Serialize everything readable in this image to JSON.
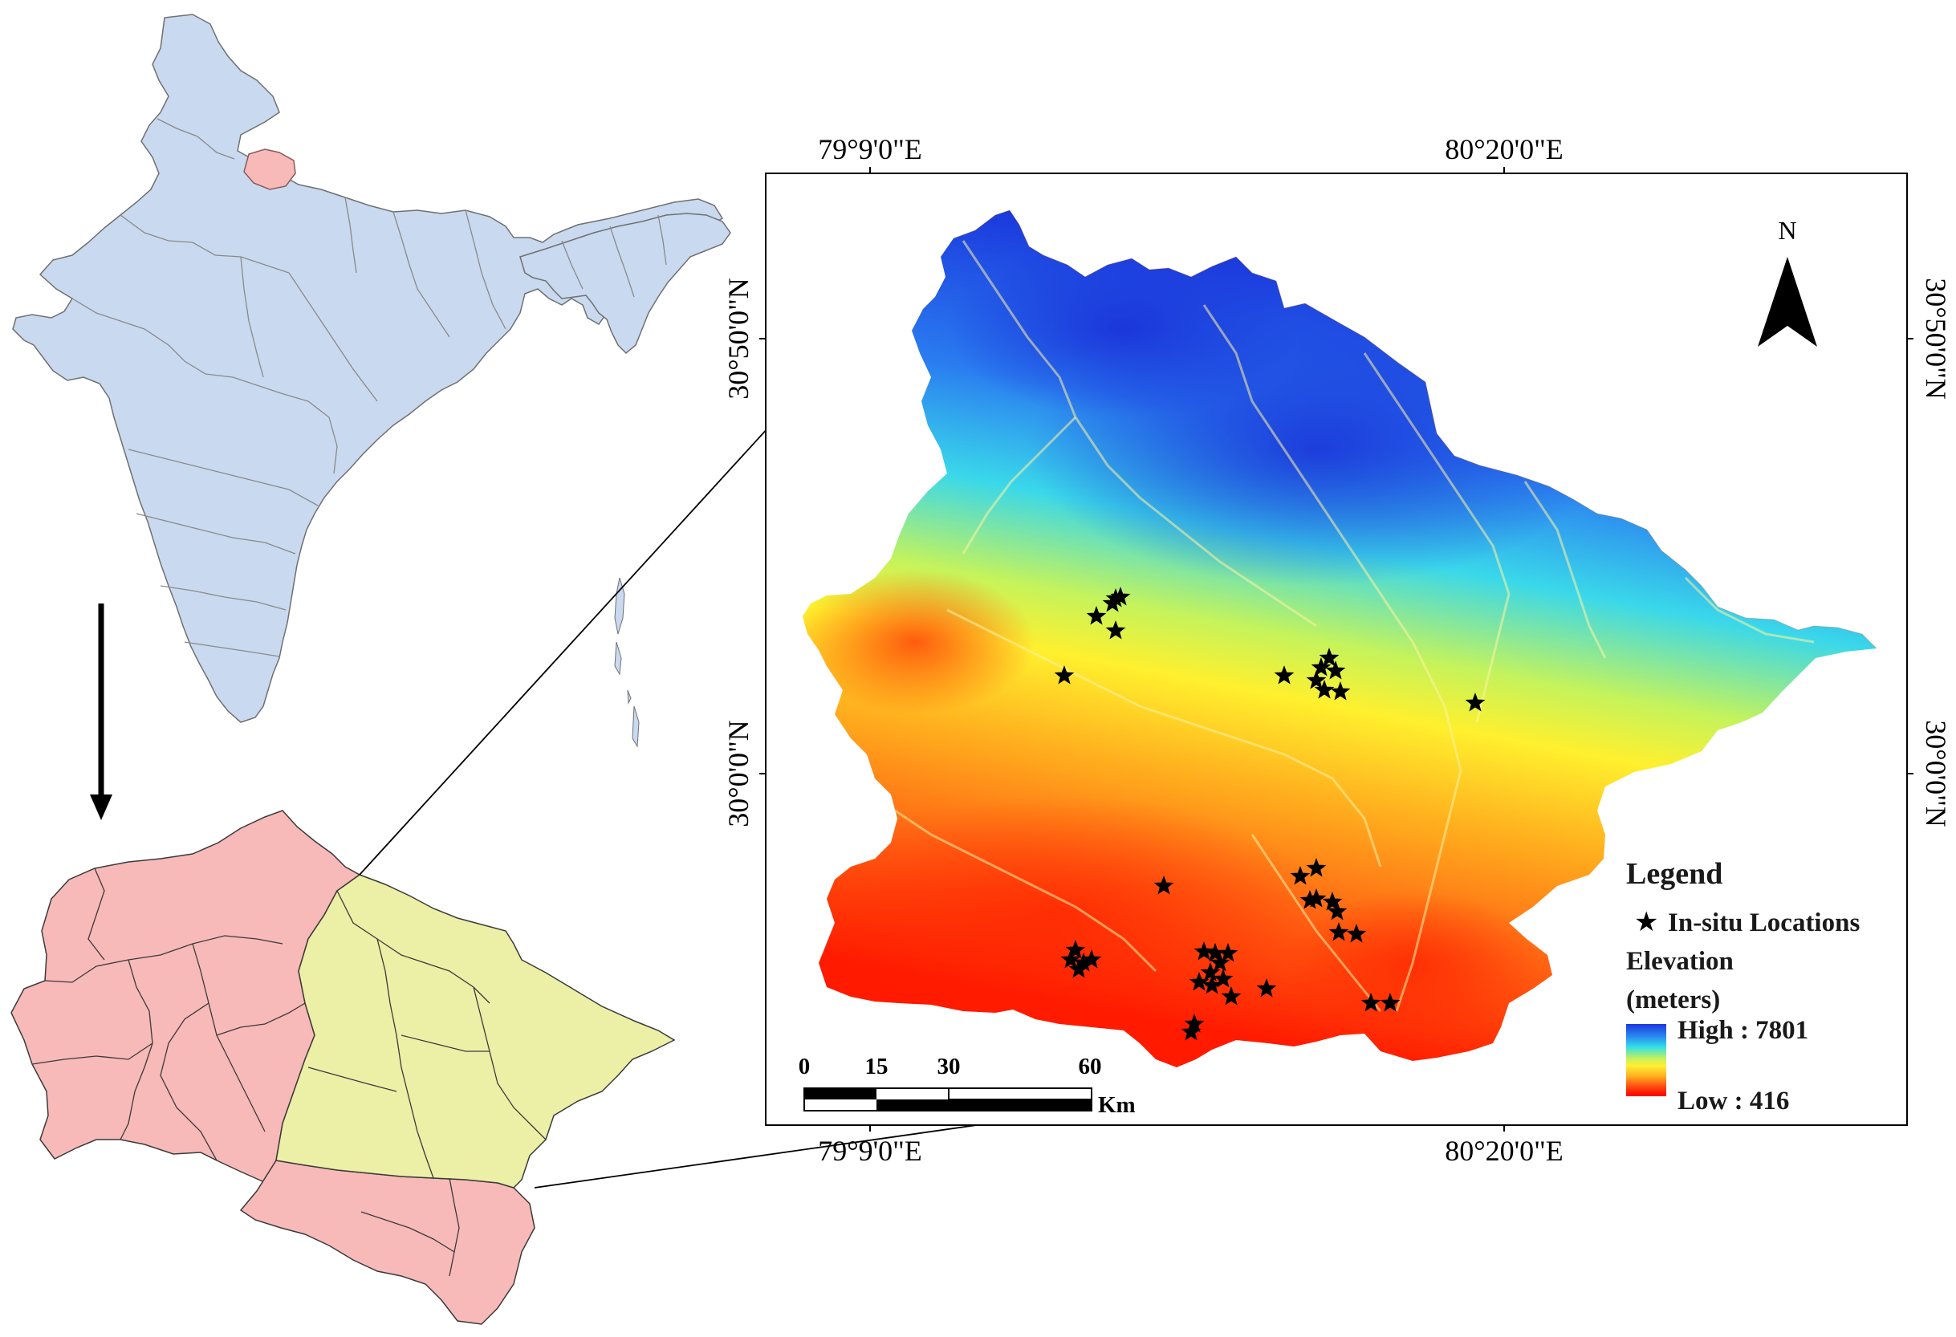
{
  "map": {
    "coords": {
      "top_left": "79°9'0\"E",
      "top_right": "80°20'0\"E",
      "bottom_left": "79°9'0\"E",
      "bottom_right": "80°20'0\"E",
      "left_upper": "30°50'0\"N",
      "left_lower": "30°0'0\"N",
      "right_upper": "30°50'0\"N",
      "right_lower": "30°0'0\"N"
    },
    "north_label": "N",
    "scale": {
      "ticks": [
        "0",
        "15",
        "30",
        "60"
      ],
      "unit": "Km"
    },
    "legend": {
      "title": "Legend",
      "in_situ": "In-situ Locations",
      "elevation_label": "Elevation",
      "elevation_unit": "(meters)",
      "high": "High : 7801",
      "low": "Low : 416"
    },
    "colors": {
      "india_fill": "#c9d9ef",
      "uttarakhand_fill": "#f8b9b9",
      "study_area_fill": "#ecefa6",
      "elevation_high": "#1f3fe8",
      "elevation_mid": "#ffff33",
      "elevation_low": "#ff0000"
    }
  }
}
